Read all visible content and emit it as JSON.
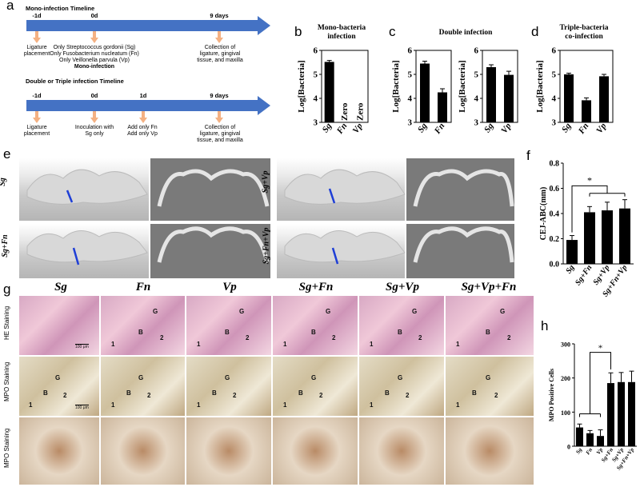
{
  "panel_a": {
    "letter": "a",
    "mono_title": "Mono-infection Timeline",
    "mono_ticks": [
      "-1d",
      "0d",
      "9 days"
    ],
    "mono_events": {
      "ligature": [
        "Ligature",
        "placement"
      ],
      "inoc": [
        "Only Streptococcus gordonii (Sg)",
        "Only Fusobacterium nucleatum (Fn)",
        "Only Veillonella parvula (Vp)",
        "Mono-infection"
      ],
      "collect": [
        "Collection of",
        "ligature, gingival",
        "tissue, and maxilla"
      ]
    },
    "multi_title": "Double or Triple infection Timeline",
    "multi_ticks": [
      "-1d",
      "0d",
      "1d",
      "9 days"
    ],
    "multi_events": {
      "ligature": [
        "Ligature",
        "placement"
      ],
      "inoc": [
        "Inoculation with",
        "Sg only"
      ],
      "add": [
        "Add only Fn",
        "Add only Vp"
      ],
      "collect": [
        "Collection of",
        "ligature, gingival",
        "tissue, and maxilla"
      ]
    }
  },
  "panel_b": {
    "letter": "b",
    "title": [
      "Mono-bacteria",
      "infection"
    ]
  },
  "panel_c": {
    "letter": "c",
    "title": [
      "Double infection"
    ]
  },
  "panel_d": {
    "letter": "d",
    "title": [
      "Triple-bacteria",
      "co-infection"
    ]
  },
  "panel_e": {
    "letter": "e",
    "labels": [
      "Sg",
      "Sg+Fn",
      "Sg+Vp",
      "Sg+Fn+Vp"
    ]
  },
  "panel_f": {
    "letter": "f"
  },
  "panel_g": {
    "letter": "g",
    "columns": [
      "Sg",
      "Fn",
      "Vp",
      "Sg+Fn",
      "Sg+Vp",
      "Sg+Vp+Fn"
    ],
    "rows": [
      "HE Staining",
      "MPO Staining",
      "MPO Staining"
    ],
    "markers": {
      "G": "G",
      "B": "B",
      "one": "1",
      "two": "2"
    },
    "scalebar": "100 μm"
  },
  "panel_h": {
    "letter": "h"
  },
  "colors": {
    "arrow": "#4472C4",
    "callout": "#F4B183",
    "he": "#E8B8C8",
    "mpo": "#D9C9A8",
    "ct": "#9a9a9a"
  },
  "chart_data": [
    {
      "id": "b",
      "type": "bar",
      "title": "Mono-bacteria infection",
      "ylabel": "Log[Bacteria]",
      "ylim": [
        3,
        6
      ],
      "yticks": [
        3,
        4,
        5,
        6
      ],
      "categories": [
        "Sg",
        "Fn",
        "Vp"
      ],
      "values": [
        5.52,
        null,
        null
      ],
      "errors": [
        0.06,
        null,
        null
      ],
      "annotations": [
        "",
        "Zero",
        "Zero"
      ]
    },
    {
      "id": "c1",
      "type": "bar",
      "title": "Double infection",
      "ylabel": "Log[Bacteria]",
      "ylim": [
        3,
        6
      ],
      "yticks": [
        3,
        4,
        5,
        6
      ],
      "categories": [
        "Sg",
        "Fn"
      ],
      "values": [
        5.45,
        4.25
      ],
      "errors": [
        0.1,
        0.15
      ]
    },
    {
      "id": "c2",
      "type": "bar",
      "ylabel": "Log[Bacteria]",
      "ylim": [
        3,
        6
      ],
      "yticks": [
        3,
        4,
        5,
        6
      ],
      "categories": [
        "Sg",
        "Vp"
      ],
      "values": [
        5.3,
        4.98
      ],
      "errors": [
        0.1,
        0.15
      ]
    },
    {
      "id": "d",
      "type": "bar",
      "title": "Triple-bacteria co-infection",
      "ylabel": "Log[Bacteria]",
      "ylim": [
        3,
        6
      ],
      "yticks": [
        3,
        4,
        5,
        6
      ],
      "categories": [
        "Sg",
        "Fn",
        "Vp"
      ],
      "values": [
        5.0,
        3.92,
        4.92
      ],
      "errors": [
        0.05,
        0.1,
        0.08
      ]
    },
    {
      "id": "f",
      "type": "bar",
      "ylabel": "CEJ-ABC(mm)",
      "ylim": [
        0,
        0.8
      ],
      "yticks": [
        0,
        0.2,
        0.4,
        0.6,
        0.8
      ],
      "categories": [
        "Sg",
        "Sg+Fn",
        "Sg+Vp",
        "Sg+Fn+Vp"
      ],
      "values": [
        0.19,
        0.41,
        0.425,
        0.44
      ],
      "errors": [
        0.035,
        0.045,
        0.065,
        0.07
      ],
      "significance": "*"
    },
    {
      "id": "h",
      "type": "bar",
      "ylabel": "MPO Positive Cells",
      "ylim": [
        0,
        300
      ],
      "yticks": [
        0,
        100,
        200,
        300
      ],
      "categories": [
        "Sg",
        "Fn",
        "Vp",
        "Sg+Fn",
        "Sg+Vp",
        "Sg+Fn+Vp"
      ],
      "values": [
        55,
        38,
        30,
        185,
        188,
        188
      ],
      "errors": [
        10,
        8,
        18,
        30,
        28,
        32
      ],
      "significance": "*"
    }
  ]
}
